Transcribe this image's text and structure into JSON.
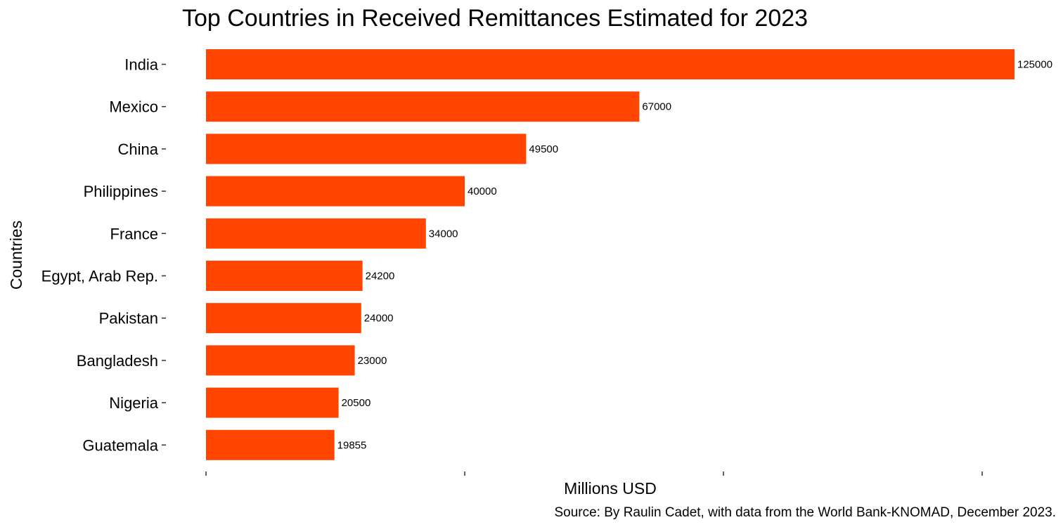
{
  "chart_data": {
    "type": "bar",
    "orientation": "horizontal",
    "title": "Top Countries in Received Remittances Estimated for 2023",
    "xlabel": "Millions USD",
    "ylabel": "Countries",
    "caption": "Source: By Raulin Cadet, with data from the World Bank-KNOMAD, December 2023.",
    "categories": [
      "India",
      "Mexico",
      "China",
      "Philippines",
      "France",
      "Egypt, Arab Rep.",
      "Pakistan",
      "Bangladesh",
      "Nigeria",
      "Guatemala"
    ],
    "values": [
      125000,
      67000,
      49500,
      40000,
      34000,
      24200,
      24000,
      23000,
      20500,
      19855
    ],
    "xlim": [
      0,
      125000
    ],
    "x_tick_values": [
      0,
      40000,
      80000,
      120000
    ],
    "x_tick_labels_shown": false,
    "bar_color": "#FF4500",
    "grid": false,
    "legend": "none"
  }
}
